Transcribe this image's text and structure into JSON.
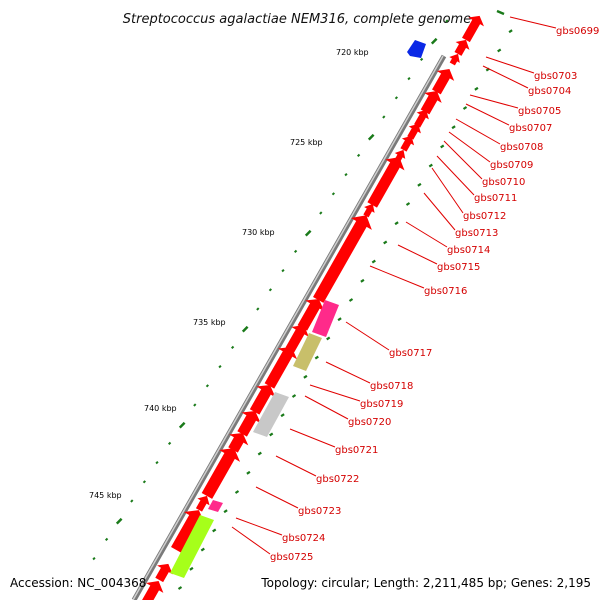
{
  "title": "Streptococcus agalactiae NEM316, complete genome",
  "accession": "Accession: NC_004368",
  "summary": "Topology: circular; Length: 2,211,485 bp; Genes: 2,195",
  "kbp_labels": [
    "720 kbp",
    "725 kbp",
    "730 kbp",
    "735 kbp",
    "740 kbp",
    "745 kbp"
  ],
  "genes": [
    "gbs0699",
    "gbs0703",
    "gbs0704",
    "gbs0705",
    "gbs0707",
    "gbs0708",
    "gbs0709",
    "gbs0710",
    "gbs0711",
    "gbs0712",
    "gbs0713",
    "gbs0714",
    "gbs0715",
    "gbs0716",
    "gbs0717",
    "gbs0718",
    "gbs0719",
    "gbs0720",
    "gbs0721",
    "gbs0722",
    "gbs0723",
    "gbs0724",
    "gbs0725"
  ],
  "colors": {
    "cds": "#ff0000",
    "backbone": "#9a9a9a",
    "tick": "#1a7a1a",
    "blue_feature": "#0a28e6",
    "pink_feature": "#ff2a8a",
    "olive_feature": "#c8bf6a",
    "grey_feature": "#c8c8c8",
    "lime_feature": "#a6ff1a"
  }
}
